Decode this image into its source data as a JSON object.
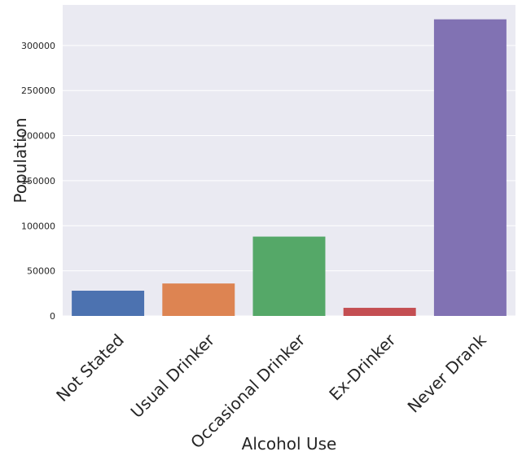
{
  "chart_data": {
    "type": "bar",
    "title": "",
    "xlabel": "Alcohol Use",
    "ylabel": "Population",
    "categories": [
      "Not Stated",
      "Usual Drinker",
      "Occasional Drinker",
      "Ex-Drinker",
      "Never Drank"
    ],
    "values": [
      28000,
      36000,
      88000,
      9000,
      329000
    ],
    "colors": [
      "#4c72b0",
      "#dd8452",
      "#55a868",
      "#c44e52",
      "#8172b3"
    ],
    "ylim": [
      0,
      345000
    ],
    "yticks": [
      0,
      50000,
      100000,
      150000,
      200000,
      250000,
      300000
    ],
    "ytick_labels": [
      "0",
      "50000",
      "100000",
      "150000",
      "200000",
      "250000",
      "300000"
    ],
    "grid": true,
    "background": "#eaeaf2",
    "legend": "none"
  }
}
